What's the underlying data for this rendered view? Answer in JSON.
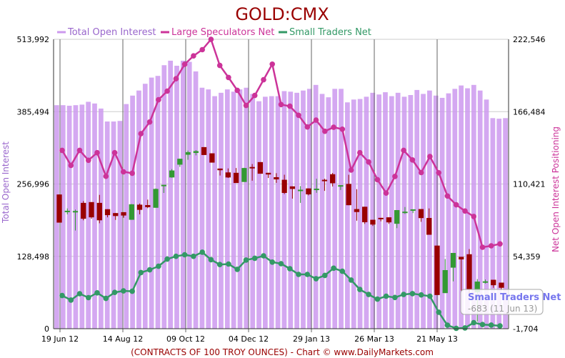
{
  "chart_data": {
    "type": "bar",
    "title": "GOLD:CMX",
    "footer": "(CONTRACTS OF 100 TROY OUNCES)  - Chart © www.DailyMarkets.com",
    "y_left_label": "Total Open Interest",
    "y_right_label": "Net Open Interest Positioning",
    "y_left_ticks": [
      "0",
      "128,498",
      "256,996",
      "385,494",
      "513,992"
    ],
    "y_right_ticks": [
      "-1,704",
      "54,359",
      "110,421",
      "166,484",
      "222,546"
    ],
    "y_left_range": [
      0,
      513992
    ],
    "y_right_range": [
      -1704,
      222546
    ],
    "x_tick_labels": [
      "19 Jun 12",
      "14 Aug 12",
      "09 Oct 12",
      "04 Dec 12",
      "29 Jan 13",
      "26 Mar 13",
      "21 May 13"
    ],
    "legend": [
      {
        "name": "Total Open Interest",
        "color": "#cc99ee"
      },
      {
        "name": "Large Speculators Net",
        "color": "#cc3399"
      },
      {
        "name": "Small Traders Net",
        "color": "#339966"
      }
    ],
    "grid": true,
    "series": [
      {
        "name": "Total Open Interest",
        "kind": "bar",
        "color": "#cc99ee",
        "values": [
          397000,
          397000,
          396000,
          397000,
          398000,
          403000,
          400000,
          391000,
          368000,
          368000,
          369000,
          399000,
          414000,
          423000,
          435000,
          446000,
          449000,
          468000,
          476000,
          467000,
          476000,
          474000,
          457000,
          428000,
          425000,
          413000,
          419000,
          425000,
          421000,
          425000,
          428000,
          417000,
          404000,
          412000,
          413000,
          413000,
          422000,
          421000,
          419000,
          423000,
          426000,
          433000,
          417000,
          411000,
          426000,
          426000,
          402000,
          407000,
          408000,
          412000,
          419000,
          416000,
          420000,
          413000,
          419000,
          412000,
          415000,
          424000,
          417000,
          423000,
          414000,
          410000,
          418000,
          426000,
          432000,
          427000,
          433000,
          423000,
          407000,
          374000,
          373000,
          374000
        ]
      },
      {
        "name": "Large Speculators Net",
        "kind": "line",
        "color": "#cc3399",
        "values": [
          136500,
          124900,
          136500,
          128800,
          134700,
          116400,
          134700,
          119900,
          118800,
          149400,
          158500,
          175700,
          182400,
          192000,
          203200,
          209700,
          214500,
          222500,
          202300,
          193000,
          183000,
          171300,
          179000,
          191200,
          203300,
          172000,
          170700,
          163700,
          154600,
          159900,
          151300,
          154400,
          152900,
          121200,
          134700,
          127500,
          113800,
          103400,
          116300,
          136500,
          129100,
          119300,
          131700,
          119100,
          101100,
          94300,
          89500,
          85300,
          61400,
          62500,
          64000
        ]
      },
      {
        "name": "Small Traders Net",
        "kind": "line",
        "color": "#339966",
        "values": [
          24000,
          20500,
          25400,
          22400,
          26100,
          21800,
          26400,
          27600,
          27300,
          41800,
          43900,
          46700,
          52200,
          54400,
          55600,
          54400,
          57600,
          51800,
          48000,
          48400,
          44300,
          51500,
          52900,
          54800,
          49900,
          48700,
          44800,
          40400,
          40400,
          37000,
          39600,
          45200,
          42800,
          36000,
          28700,
          24800,
          21200,
          23500,
          22500,
          24800,
          25500,
          24500,
          23500,
          11100,
          1000,
          -1400,
          -1100,
          3000,
          1500,
          1100,
          500
        ]
      },
      {
        "name": "Candles",
        "kind": "candlestick",
        "colors": {
          "up": "#339933",
          "down": "#990000"
        },
        "ohlc": [
          [
            102300,
            102300,
            80500,
            80500
          ],
          [
            89600,
            91500,
            86900,
            89700
          ],
          [
            88700,
            90600,
            74400,
            89500
          ],
          [
            95800,
            97200,
            82300,
            83500
          ],
          [
            96400,
            96400,
            83500,
            84600
          ],
          [
            95800,
            102000,
            80000,
            82300
          ],
          [
            90900,
            90900,
            84600,
            86300
          ],
          [
            87900,
            87900,
            82600,
            85600
          ],
          [
            88600,
            88600,
            84300,
            86000
          ],
          [
            82700,
            94900,
            82700,
            94700
          ],
          [
            94400,
            95300,
            86900,
            90400
          ],
          [
            94100,
            98300,
            91700,
            92500
          ],
          [
            92000,
            107000,
            92000,
            106600
          ],
          [
            109100,
            109800,
            103500,
            109800
          ],
          [
            115500,
            122000,
            115300,
            120900
          ],
          [
            125400,
            130000,
            123700,
            130000
          ],
          [
            133100,
            136300,
            129200,
            135100
          ],
          [
            134500,
            136700,
            132600,
            135900
          ],
          [
            139000,
            139000,
            132900,
            132900
          ],
          [
            134200,
            134200,
            127000,
            127000
          ],
          [
            122400,
            122400,
            117000,
            121100
          ],
          [
            119400,
            122500,
            115100,
            115500
          ],
          [
            119100,
            122800,
            111200,
            111200
          ],
          [
            112000,
            123000,
            112000,
            122800
          ],
          [
            123600,
            125900,
            113000,
            123400
          ],
          [
            127400,
            127400,
            118400,
            118400
          ],
          [
            119100,
            119100,
            115100,
            117800
          ],
          [
            115700,
            118800,
            111300,
            114000
          ],
          [
            113700,
            117600,
            102600,
            103500
          ],
          [
            108600,
            108600,
            99100,
            106600
          ],
          [
            105600,
            108800,
            95800,
            106000
          ],
          [
            107000,
            107000,
            101600,
            102400
          ],
          [
            106700,
            114500,
            103600,
            106800
          ],
          [
            113700,
            114500,
            105100,
            113000
          ],
          [
            118000,
            119000,
            108500,
            111000
          ],
          [
            109500,
            109500,
            105800,
            109500
          ],
          [
            110500,
            117600,
            94000,
            94000
          ],
          [
            91000,
            106400,
            82000,
            88700
          ],
          [
            92800,
            92800,
            79500,
            80800
          ],
          [
            82700,
            82700,
            77900,
            79000
          ],
          [
            84200,
            84200,
            81500,
            84100
          ],
          [
            84600,
            84600,
            79500,
            80700
          ],
          [
            79600,
            90200,
            76200,
            90200
          ],
          [
            88600,
            92600,
            87200,
            89000
          ],
          [
            90300,
            90800,
            87900,
            90800
          ],
          [
            91000,
            91000,
            81100,
            84000
          ],
          [
            84100,
            91500,
            71100,
            71100
          ],
          [
            62700,
            62700,
            24400,
            24400
          ],
          [
            25900,
            52300,
            25900,
            43700
          ],
          [
            45600,
            57000,
            35000,
            57000
          ],
          [
            54000,
            54000,
            27800,
            52000
          ],
          [
            56000,
            60000,
            25000,
            28700
          ],
          [
            26600,
            36700,
            3800,
            34800
          ],
          [
            34800,
            36400,
            33300,
            35000
          ],
          [
            36200,
            36200,
            30000,
            32000
          ],
          [
            34000,
            34000,
            28000,
            30000
          ]
        ]
      }
    ]
  },
  "tooltip": {
    "title": "Small Traders Net",
    "value": "-683",
    "date": "(11 Jun 13)"
  }
}
